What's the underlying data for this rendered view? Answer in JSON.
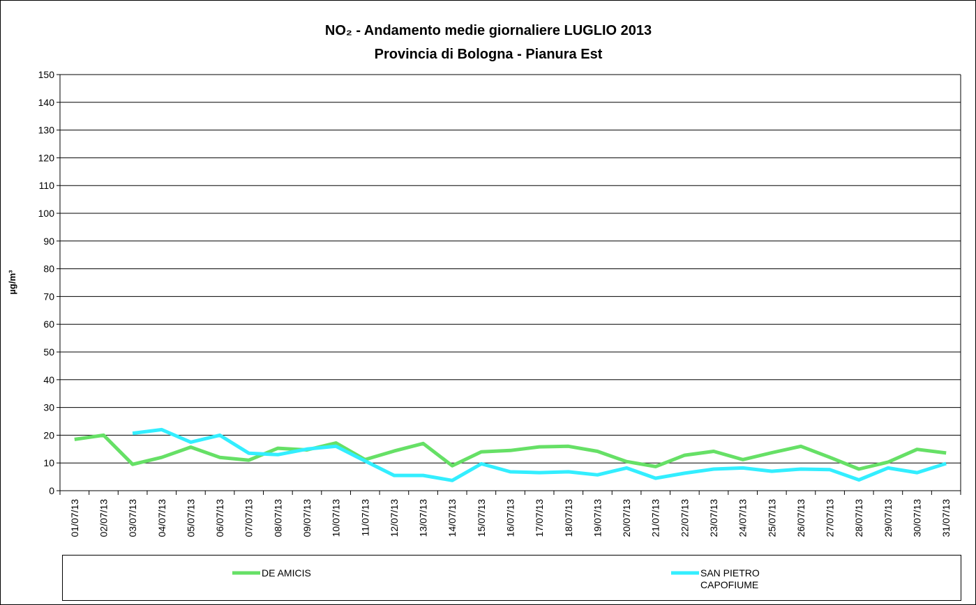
{
  "chart_data": {
    "type": "line",
    "title": "NO₂ - Andamento medie giornaliere LUGLIO 2013",
    "subtitle": "Provincia di Bologna - Pianura Est",
    "y_label": "µg/m³",
    "categories": [
      "01/07/13",
      "02/07/13",
      "03/07/13",
      "04/07/13",
      "05/07/13",
      "06/07/13",
      "07/07/13",
      "08/07/13",
      "09/07/13",
      "10/07/13",
      "11/07/13",
      "12/07/13",
      "13/07/13",
      "14/07/13",
      "15/07/13",
      "16/07/13",
      "17/07/13",
      "18/07/13",
      "19/07/13",
      "20/07/13",
      "21/07/13",
      "22/07/13",
      "23/07/13",
      "24/07/13",
      "25/07/13",
      "26/07/13",
      "27/07/13",
      "28/07/13",
      "29/07/13",
      "30/07/13",
      "31/07/13"
    ],
    "series": [
      {
        "name": "DE AMICIS",
        "color": "#66e066",
        "values": [
          18.5,
          20,
          9.5,
          12,
          15.7,
          12,
          11,
          15.3,
          14.7,
          17.2,
          11.2,
          14.3,
          17,
          9,
          14,
          14.5,
          15.8,
          16,
          14.2,
          10.5,
          8.7,
          12.8,
          14.2,
          11.2,
          13.7,
          16,
          12,
          7.8,
          10.3,
          14.9,
          13.6
        ]
      },
      {
        "name": "SAN PIETRO CAPOFIUME",
        "color": "#33eeff",
        "values": [
          null,
          null,
          20.7,
          22,
          17.5,
          20,
          13.5,
          13,
          15,
          16,
          10.7,
          5.5,
          5.5,
          3.7,
          9.7,
          6.8,
          6.5,
          6.8,
          5.7,
          8.2,
          4.5,
          6.3,
          7.8,
          8.2,
          7,
          7.8,
          7.6,
          3.9,
          8.2,
          6.5,
          9.8
        ]
      }
    ],
    "ylim": [
      0,
      150
    ],
    "yticks": [
      0,
      10,
      20,
      30,
      40,
      50,
      60,
      70,
      80,
      90,
      100,
      110,
      120,
      130,
      140,
      150
    ],
    "grid": true
  }
}
